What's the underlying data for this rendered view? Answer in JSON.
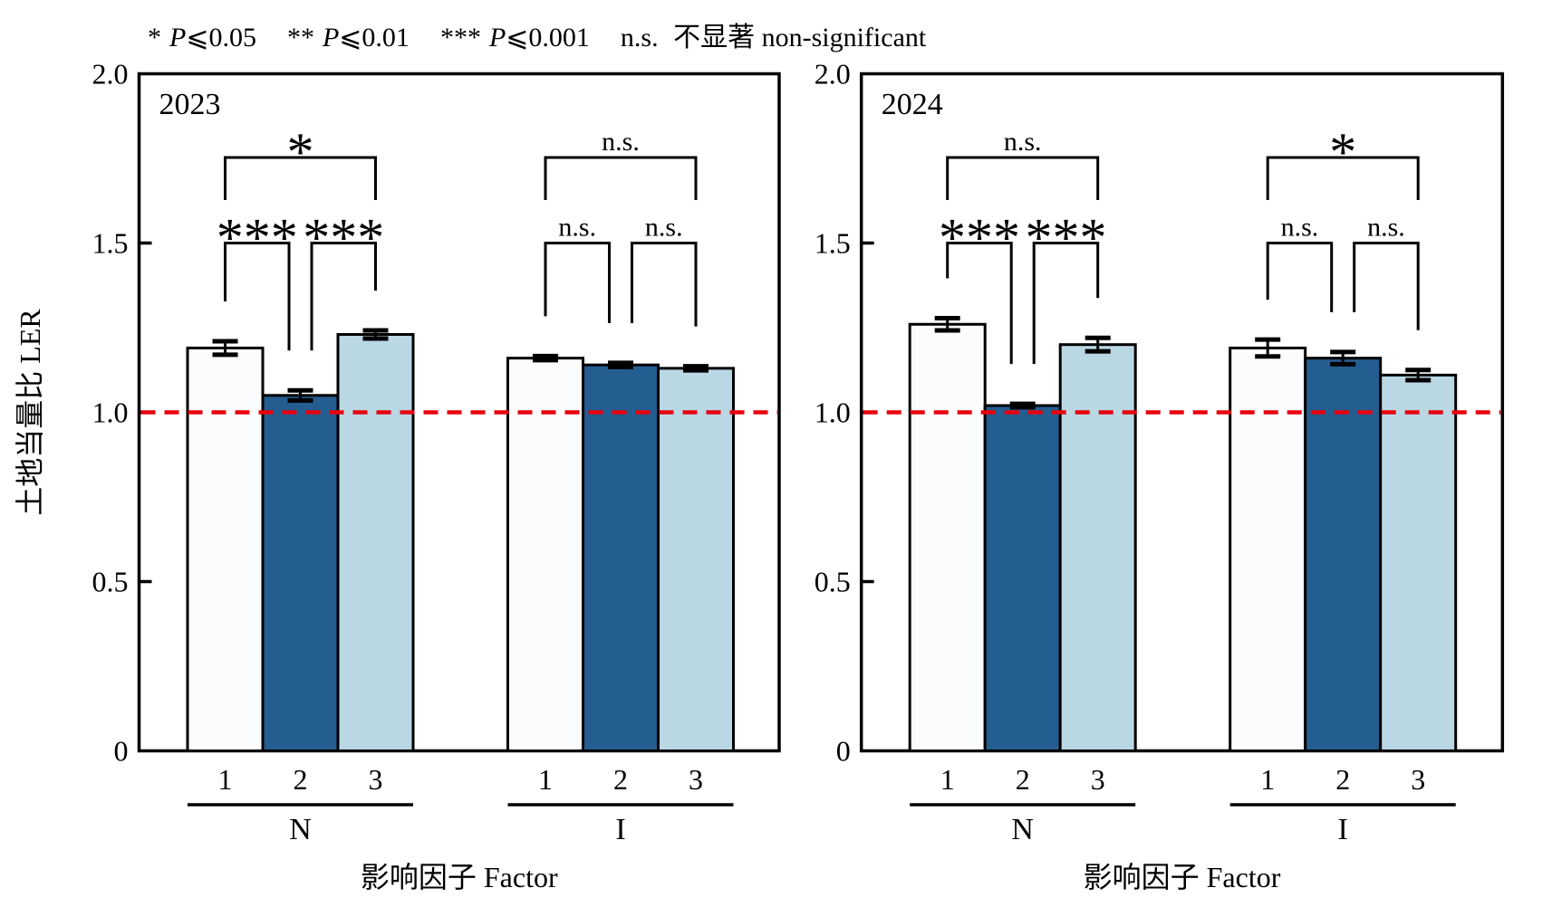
{
  "legend": {
    "items": [
      {
        "marker": "*",
        "p": "P",
        "cond": "⩽0.05"
      },
      {
        "marker": "**",
        "p": "P",
        "cond": "⩽0.01"
      },
      {
        "marker": "***",
        "p": "P",
        "cond": "⩽0.001"
      },
      {
        "marker": "n.s.",
        "p": "",
        "cond": " 不显著 non-significant"
      }
    ]
  },
  "chart_data": {
    "type": "bar",
    "title": "",
    "ylabel": "土地当量比 LER",
    "xlabel": "影响因子 Factor",
    "ylim": [
      0,
      2.0
    ],
    "yticks": [
      0,
      0.5,
      1.0,
      1.5,
      2.0
    ],
    "ytick_labels": [
      "0",
      "0.5",
      "1.0",
      "1.5",
      "2.0"
    ],
    "grid": false,
    "reference_line": 1.0,
    "reference_line_color": "#e8000d",
    "bar_colors": [
      "#fafcfe",
      "#245d90",
      "#bad7e4"
    ],
    "bar_edge_color": "#000000",
    "categories": [
      "1",
      "2",
      "3"
    ],
    "panels": [
      {
        "title": "2023",
        "groups": [
          {
            "name": "N",
            "values": [
              1.19,
              1.05,
              1.23
            ],
            "errors": [
              0.02,
              0.015,
              0.012
            ],
            "brackets": [
              {
                "pair": [
                  1,
                  2
                ],
                "label": "***"
              },
              {
                "pair": [
                  2,
                  3
                ],
                "label": "***"
              },
              {
                "pair": [
                  1,
                  3
                ],
                "label": "*"
              }
            ]
          },
          {
            "name": "I",
            "values": [
              1.16,
              1.14,
              1.13
            ],
            "errors": [
              0.006,
              0.006,
              0.006
            ],
            "brackets": [
              {
                "pair": [
                  1,
                  2
                ],
                "label": "n.s."
              },
              {
                "pair": [
                  2,
                  3
                ],
                "label": "n.s."
              },
              {
                "pair": [
                  1,
                  3
                ],
                "label": "n.s."
              }
            ]
          }
        ]
      },
      {
        "title": "2024",
        "groups": [
          {
            "name": "N",
            "values": [
              1.26,
              1.02,
              1.2
            ],
            "errors": [
              0.018,
              0.005,
              0.02
            ],
            "brackets": [
              {
                "pair": [
                  1,
                  2
                ],
                "label": "***"
              },
              {
                "pair": [
                  2,
                  3
                ],
                "label": "***"
              },
              {
                "pair": [
                  1,
                  3
                ],
                "label": "n.s."
              }
            ]
          },
          {
            "name": "I",
            "values": [
              1.19,
              1.16,
              1.11
            ],
            "errors": [
              0.025,
              0.018,
              0.015
            ],
            "brackets": [
              {
                "pair": [
                  1,
                  2
                ],
                "label": "n.s."
              },
              {
                "pair": [
                  2,
                  3
                ],
                "label": "n.s."
              },
              {
                "pair": [
                  1,
                  3
                ],
                "label": "*"
              }
            ]
          }
        ]
      }
    ]
  }
}
